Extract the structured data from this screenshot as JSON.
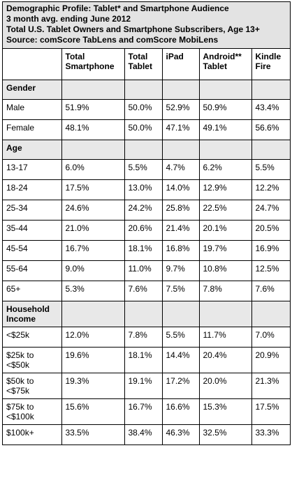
{
  "header": {
    "lines": [
      "Demographic Profile: Tablet* and Smartphone Audience",
      "3 month avg. ending June 2012",
      "Total U.S. Tablet Owners and Smartphone Subscribers, Age 13+",
      "Source: comScore TabLens and comScore MobiLens"
    ]
  },
  "table": {
    "columns": [
      "Total Smartphone",
      "Total Tablet",
      "iPad",
      "Android** Tablet",
      "Kindle Fire"
    ],
    "rows": [
      {
        "heading": "Gender"
      },
      {
        "label": "Male",
        "values": [
          "51.9%",
          "50.0%",
          "52.9%",
          "50.9%",
          "43.4%"
        ]
      },
      {
        "label": "Female",
        "values": [
          "48.1%",
          "50.0%",
          "47.1%",
          "49.1%",
          "56.6%"
        ]
      },
      {
        "heading": "Age"
      },
      {
        "label": "13-17",
        "values": [
          "6.0%",
          "5.5%",
          "4.7%",
          "6.2%",
          "5.5%"
        ]
      },
      {
        "label": "18-24",
        "values": [
          "17.5%",
          "13.0%",
          "14.0%",
          "12.9%",
          "12.2%"
        ]
      },
      {
        "label": "25-34",
        "values": [
          "24.6%",
          "24.2%",
          "25.8%",
          "22.5%",
          "24.7%"
        ]
      },
      {
        "label": "35-44",
        "values": [
          "21.0%",
          "20.6%",
          "21.4%",
          "20.1%",
          "20.5%"
        ]
      },
      {
        "label": "45-54",
        "values": [
          "16.7%",
          "18.1%",
          "16.8%",
          "19.7%",
          "16.9%"
        ]
      },
      {
        "label": "55-64",
        "values": [
          "9.0%",
          "11.0%",
          "9.7%",
          "10.8%",
          "12.5%"
        ]
      },
      {
        "label": "65+",
        "values": [
          "5.3%",
          "7.6%",
          "7.5%",
          "7.8%",
          "7.6%"
        ]
      },
      {
        "heading": "Household Income"
      },
      {
        "label": "<$25k",
        "values": [
          "12.0%",
          "7.8%",
          "5.5%",
          "11.7%",
          "7.0%"
        ]
      },
      {
        "label": "$25k to <$50k",
        "values": [
          "19.6%",
          "18.1%",
          "14.4%",
          "20.4%",
          "20.9%"
        ]
      },
      {
        "label": "$50k to <$75k",
        "values": [
          "19.3%",
          "19.1%",
          "17.2%",
          "20.0%",
          "21.3%"
        ]
      },
      {
        "label": "$75k to <$100k",
        "values": [
          "15.6%",
          "16.7%",
          "16.6%",
          "15.3%",
          "17.5%"
        ]
      },
      {
        "label": "$100k+",
        "values": [
          "33.5%",
          "38.4%",
          "46.3%",
          "32.5%",
          "33.3%"
        ]
      }
    ]
  }
}
